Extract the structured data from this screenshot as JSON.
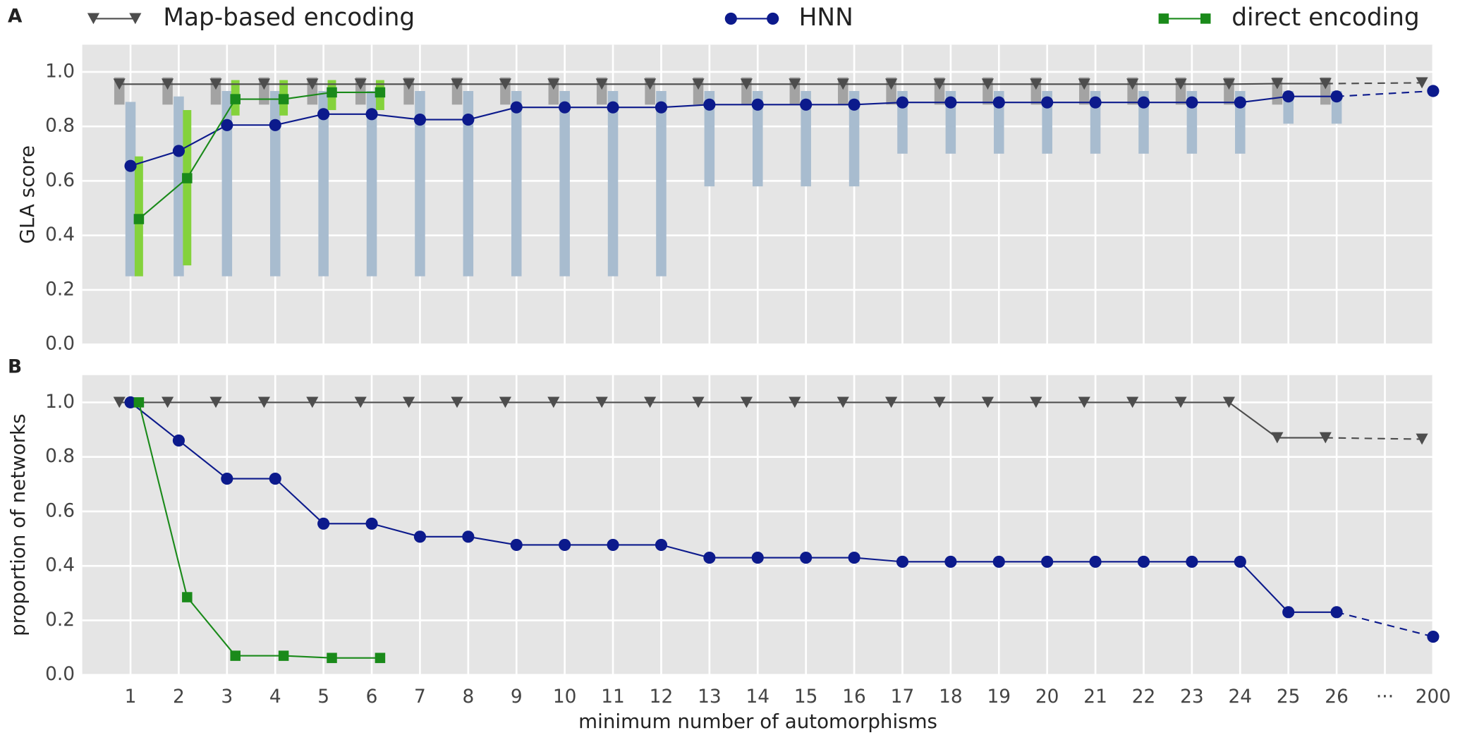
{
  "chart_data": [
    {
      "type": "line",
      "panel": "A",
      "ylabel": "GLA score",
      "ylim": [
        0,
        1.1
      ],
      "yticks": [
        {
          "value": 0,
          "label": "0.0"
        },
        0.2,
        0.4,
        0.6,
        0.8,
        {
          "value": 1,
          "label": "1.0"
        }
      ],
      "grid": true,
      "series": [
        {
          "name": "Map-based encoding",
          "color": "#4d4d4d",
          "marker": "triangle",
          "values": [
            0.955,
            0.955,
            0.955,
            0.955,
            0.955,
            0.955,
            0.955,
            0.955,
            0.955,
            0.955,
            0.955,
            0.955,
            0.955,
            0.955,
            0.955,
            0.955,
            0.955,
            0.955,
            0.955,
            0.955,
            0.955,
            0.955,
            0.955,
            0.955,
            0.957,
            0.957,
            null,
            0.96
          ]
        },
        {
          "name": "HNN",
          "color": "#0c1a8c",
          "marker": "circle",
          "values": [
            0.655,
            0.71,
            0.805,
            0.805,
            0.845,
            0.845,
            0.825,
            0.825,
            0.87,
            0.87,
            0.87,
            0.87,
            0.88,
            0.88,
            0.88,
            0.88,
            0.888,
            0.888,
            0.888,
            0.888,
            0.888,
            0.888,
            0.888,
            0.888,
            0.91,
            0.91,
            null,
            0.93
          ]
        },
        {
          "name": "direct encoding",
          "color": "#1a8a1a",
          "marker": "square",
          "values": [
            0.46,
            0.61,
            0.9,
            0.9,
            0.925,
            0.925,
            null,
            null,
            null,
            null,
            null,
            null,
            null,
            null,
            null,
            null,
            null,
            null,
            null,
            null,
            null,
            null,
            null,
            null,
            null,
            null,
            null,
            null
          ]
        }
      ],
      "boxes": [
        {
          "color": "#a3a3a3",
          "q1": [
            0.88,
            0.88,
            0.88,
            0.88,
            0.88,
            0.88,
            0.88,
            0.88,
            0.88,
            0.88,
            0.88,
            0.88,
            0.88,
            0.88,
            0.88,
            0.88,
            0.88,
            0.88,
            0.88,
            0.88,
            0.88,
            0.88,
            0.88,
            0.88,
            0.88,
            0.88,
            null,
            null
          ],
          "q3": [
            0.98,
            0.98,
            0.98,
            0.98,
            0.98,
            0.98,
            0.98,
            0.98,
            0.98,
            0.98,
            0.98,
            0.98,
            0.98,
            0.98,
            0.98,
            0.98,
            0.98,
            0.98,
            0.98,
            0.98,
            0.98,
            0.98,
            0.98,
            0.98,
            0.98,
            0.98,
            null,
            null
          ]
        },
        {
          "color": "#a8bccf",
          "q1": [
            0.25,
            0.25,
            0.25,
            0.25,
            0.25,
            0.25,
            0.25,
            0.25,
            0.25,
            0.25,
            0.25,
            0.25,
            0.58,
            0.58,
            0.58,
            0.58,
            0.7,
            0.7,
            0.7,
            0.7,
            0.7,
            0.7,
            0.7,
            0.7,
            0.81,
            0.81,
            null,
            null
          ],
          "q3": [
            0.89,
            0.91,
            0.93,
            0.93,
            0.93,
            0.93,
            0.93,
            0.93,
            0.93,
            0.93,
            0.93,
            0.93,
            0.93,
            0.93,
            0.93,
            0.93,
            0.93,
            0.93,
            0.93,
            0.93,
            0.93,
            0.93,
            0.93,
            0.93,
            0.93,
            0.93,
            null,
            null
          ]
        },
        {
          "color": "#84d23c",
          "q1": [
            0.25,
            0.29,
            0.84,
            0.84,
            0.86,
            0.86,
            null,
            null,
            null,
            null,
            null,
            null,
            null,
            null,
            null,
            null,
            null,
            null,
            null,
            null,
            null,
            null,
            null,
            null,
            null,
            null,
            null,
            null
          ],
          "q3": [
            0.69,
            0.86,
            0.97,
            0.97,
            0.97,
            0.97,
            null,
            null,
            null,
            null,
            null,
            null,
            null,
            null,
            null,
            null,
            null,
            null,
            null,
            null,
            null,
            null,
            null,
            null,
            null,
            null,
            null,
            null
          ]
        }
      ]
    },
    {
      "type": "line",
      "panel": "B",
      "ylabel": "proportion of networks",
      "xlabel": "minimum number of automorphisms",
      "categories": [
        "1",
        "2",
        "3",
        "4",
        "5",
        "6",
        "7",
        "8",
        "9",
        "10",
        "11",
        "12",
        "13",
        "14",
        "15",
        "16",
        "17",
        "18",
        "19",
        "20",
        "21",
        "22",
        "23",
        "24",
        "25",
        "26",
        "···",
        "200"
      ],
      "ylim": [
        0,
        1.1
      ],
      "yticks": [
        {
          "value": 0,
          "label": "0.0"
        },
        0.2,
        0.4,
        0.6,
        0.8,
        {
          "value": 1,
          "label": "1.0"
        }
      ],
      "grid": true,
      "series": [
        {
          "color": "#4d4d4d",
          "marker": "triangle",
          "values": [
            1,
            1,
            1,
            1,
            1,
            1,
            1,
            1,
            1,
            1,
            1,
            1,
            1,
            1,
            1,
            1,
            1,
            1,
            1,
            1,
            1,
            1,
            1,
            1,
            0.87,
            0.87,
            null,
            0.865
          ]
        },
        {
          "color": "#0c1a8c",
          "marker": "circle",
          "values": [
            1,
            0.86,
            0.72,
            0.72,
            0.555,
            0.555,
            0.507,
            0.507,
            0.477,
            0.477,
            0.477,
            0.477,
            0.43,
            0.43,
            0.43,
            0.43,
            0.415,
            0.415,
            0.415,
            0.415,
            0.415,
            0.415,
            0.415,
            0.415,
            0.23,
            0.23,
            null,
            0.14
          ]
        },
        {
          "color": "#1a8a1a",
          "marker": "square",
          "values": [
            1,
            0.285,
            0.07,
            0.07,
            0.062,
            0.062,
            null,
            null,
            null,
            null,
            null,
            null,
            null,
            null,
            null,
            null,
            null,
            null,
            null,
            null,
            null,
            null,
            null,
            null,
            null,
            null,
            null,
            null
          ]
        }
      ]
    }
  ]
}
